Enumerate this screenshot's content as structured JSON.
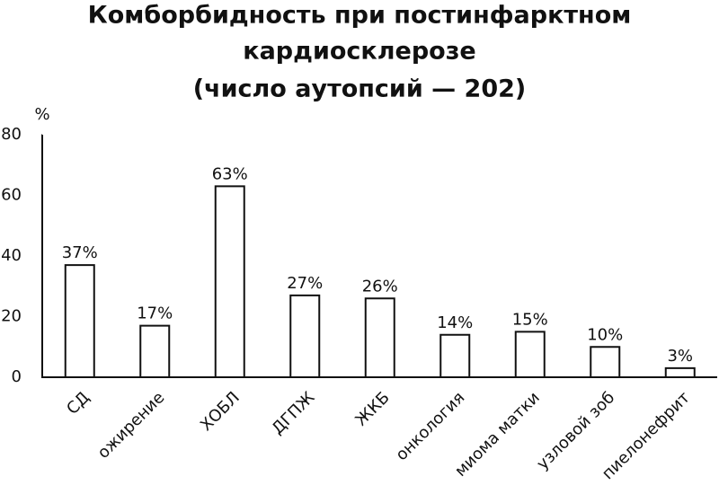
{
  "chart_data": {
    "type": "bar",
    "title": [
      "Комборбидность при постинфарктном",
      "кардиосклерозе",
      "(число аутопсий — 202)"
    ],
    "y_label": "%",
    "categories": [
      "СД",
      "ожирение",
      "ХОБЛ",
      "ДГПЖ",
      "ЖКБ",
      "онкология",
      "миома матки",
      "узловой зоб",
      "пиелонефрит"
    ],
    "values": [
      37,
      17,
      63,
      27,
      26,
      14,
      15,
      10,
      3
    ],
    "value_labels": [
      "37%",
      "17%",
      "63%",
      "27%",
      "26%",
      "14%",
      "15%",
      "10%",
      "3%"
    ],
    "color": "#ffffff",
    "ylim": [
      0,
      80
    ],
    "yticks": [
      0,
      20,
      40,
      60,
      80
    ],
    "grid": false
  }
}
